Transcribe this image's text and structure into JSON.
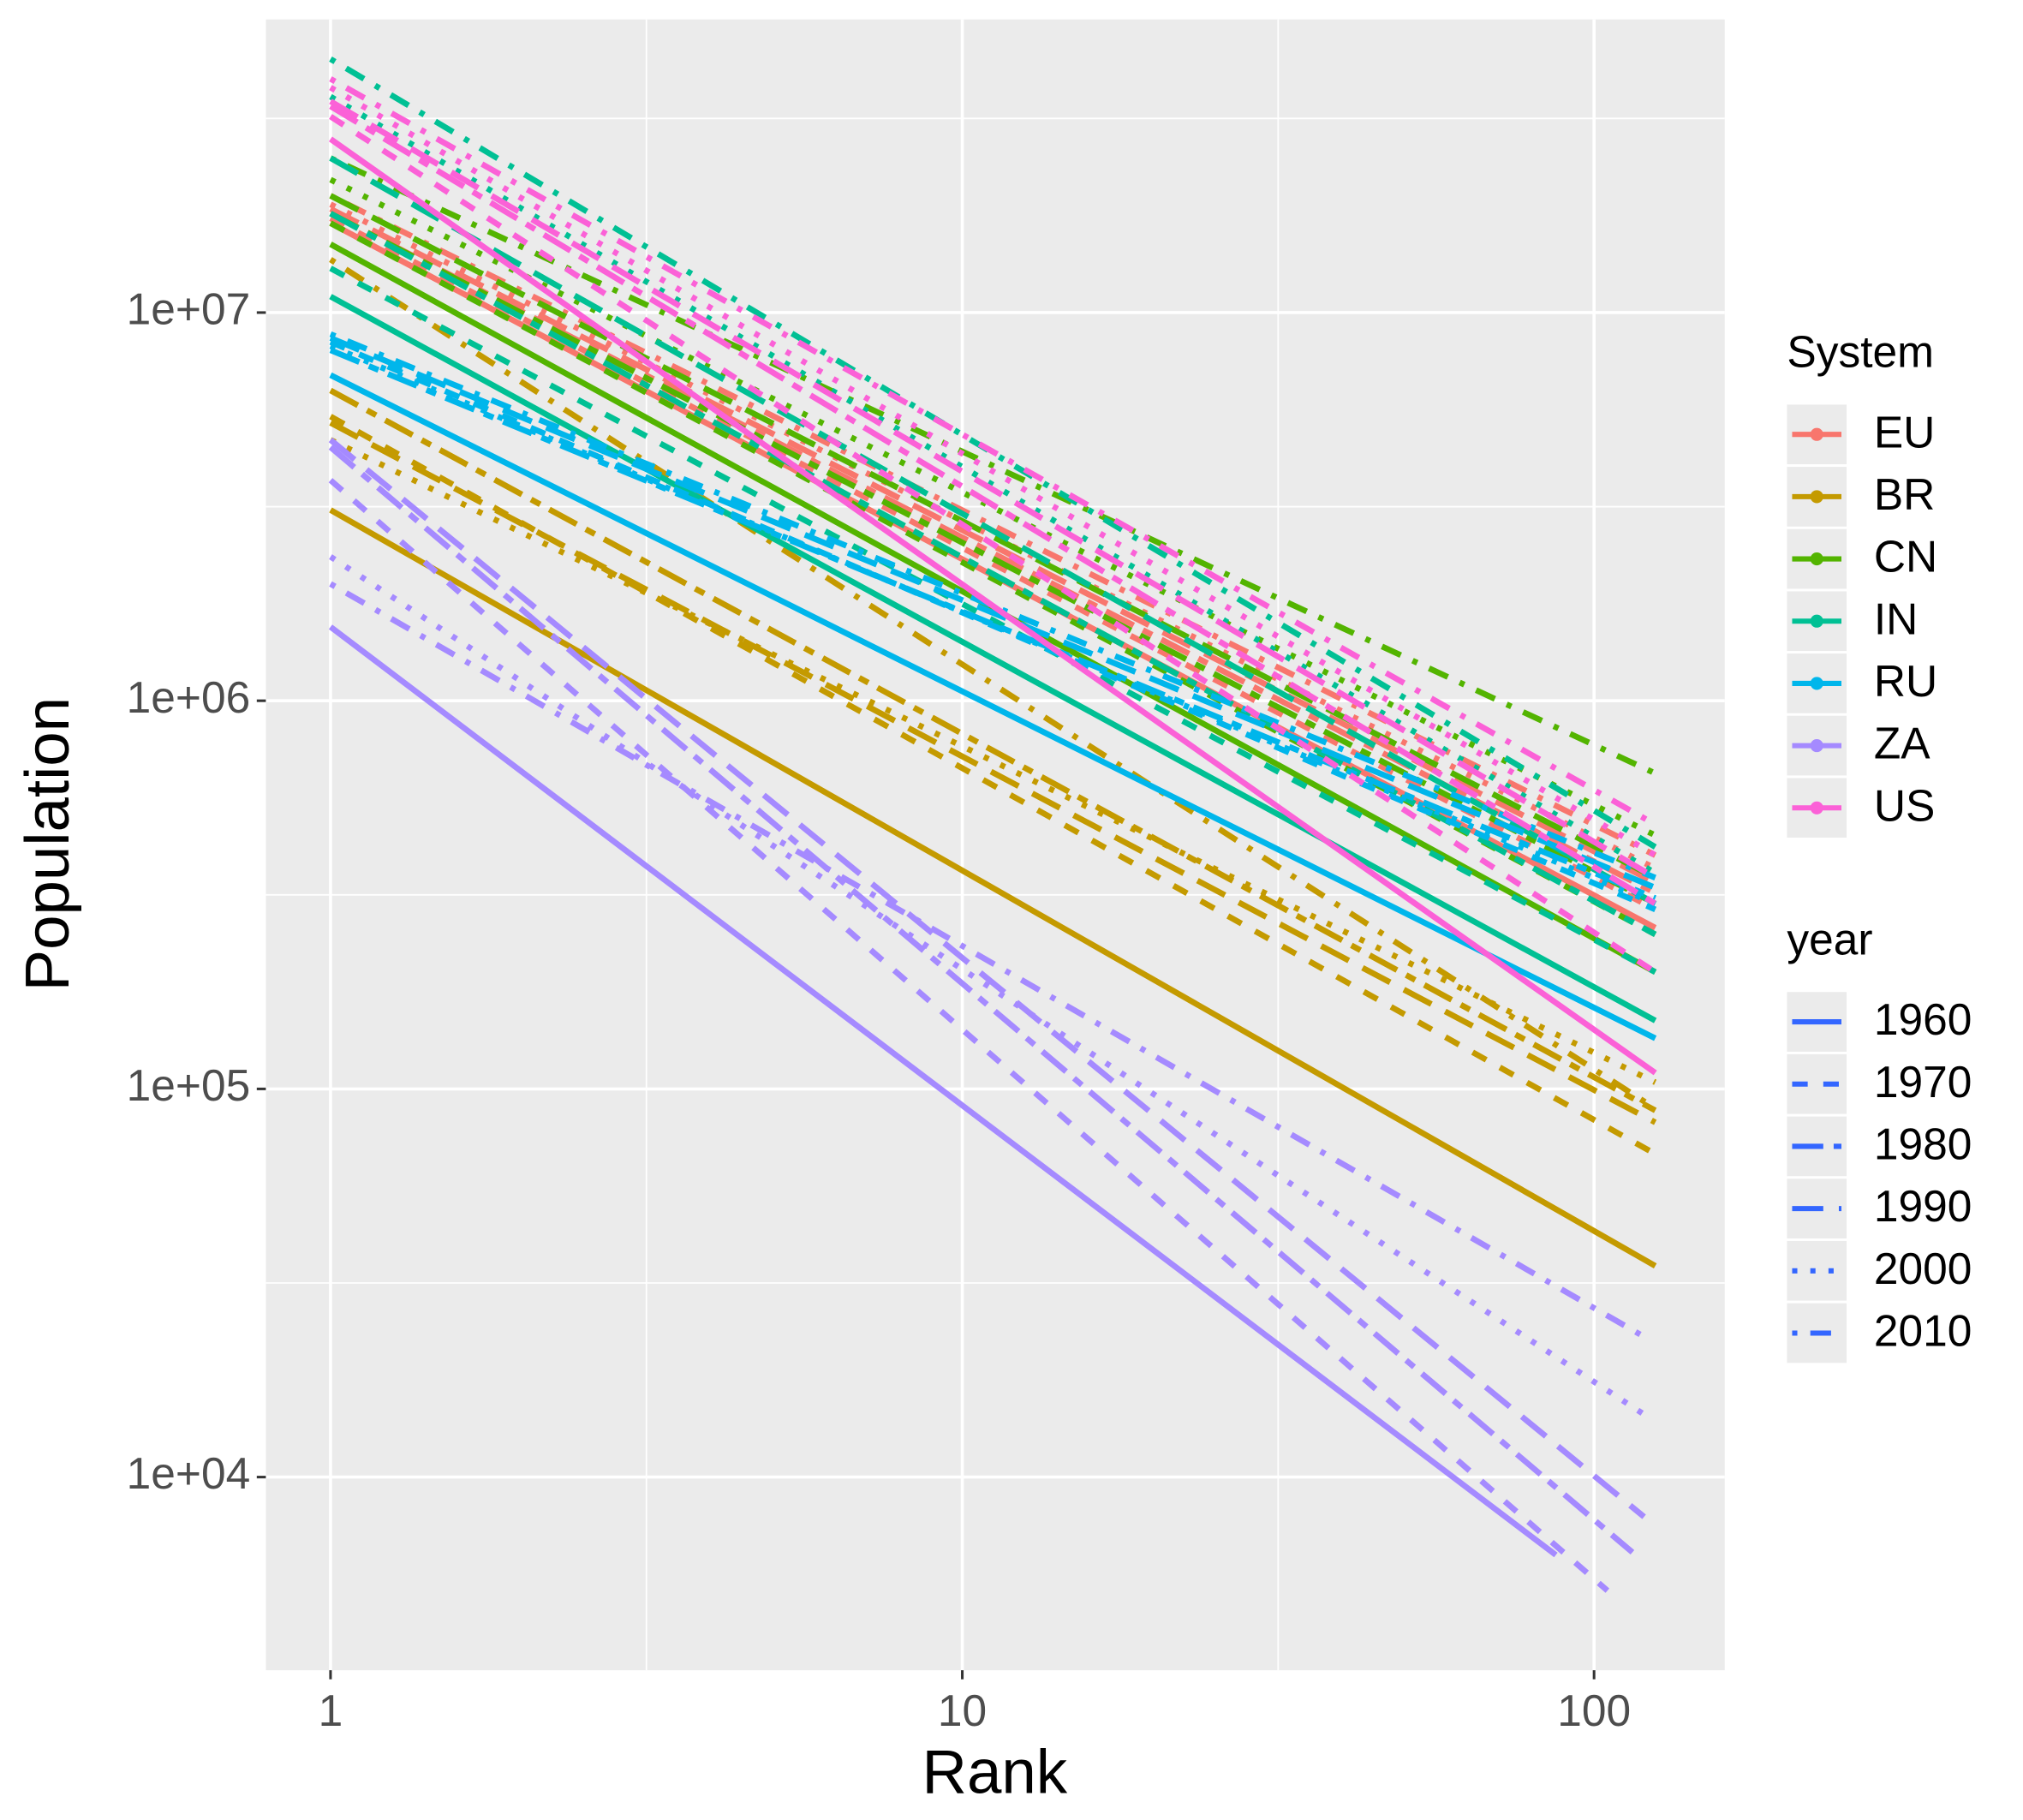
{
  "chart_data": {
    "type": "line",
    "x_label": "Rank",
    "y_label": "Population",
    "log_x": true,
    "log_y": true,
    "grid": true,
    "xlim": [
      0.79,
      161
    ],
    "ylim": [
      3180,
      56900000
    ],
    "xticks": [
      1,
      10,
      100
    ],
    "yticks": [
      {
        "value": 10000,
        "label": "1e+04"
      },
      {
        "value": 100000,
        "label": "1e+05"
      },
      {
        "value": 1000000,
        "label": "1e+06"
      },
      {
        "value": 10000000,
        "label": "1e+07"
      }
    ],
    "system_legend": {
      "title": "System"
    },
    "year_legend": {
      "title": "year",
      "key_color": "#3366FF",
      "years": [
        {
          "name": "1960",
          "linetype": "solid"
        },
        {
          "name": "1970",
          "linetype": "dashed"
        },
        {
          "name": "1980",
          "linetype": "twodash"
        },
        {
          "name": "1990",
          "linetype": "longdash"
        },
        {
          "name": "2000",
          "linetype": "dotted"
        },
        {
          "name": "2010",
          "linetype": "dotdash"
        }
      ]
    },
    "systems": [
      {
        "name": "EU",
        "color": "#F8766D",
        "fits": [
          {
            "x": [
              1,
              125
            ],
            "values": [
              17000000,
              260000
            ]
          },
          {
            "x": [
              1,
              125
            ],
            "values": [
              17500000,
              290000
            ]
          },
          {
            "x": [
              1,
              125
            ],
            "values": [
              18000000,
              320000
            ]
          },
          {
            "x": [
              1,
              125
            ],
            "values": [
              18500000,
              340000
            ]
          },
          {
            "x": [
              1,
              125
            ],
            "values": [
              19000000,
              370000
            ]
          },
          {
            "x": [
              1,
              125
            ],
            "values": [
              20000000,
              400000
            ]
          }
        ]
      },
      {
        "name": "BR",
        "color": "#C49A00",
        "fits": [
          {
            "x": [
              1,
              125
            ],
            "values": [
              3100000,
              35000
            ]
          },
          {
            "x": [
              1,
              125
            ],
            "values": [
              5400000,
              68000
            ]
          },
          {
            "x": [
              1,
              125
            ],
            "values": [
              6300000,
              88000
            ]
          },
          {
            "x": [
              1,
              125
            ],
            "values": [
              5200000,
              82000
            ]
          },
          {
            "x": [
              1,
              125
            ],
            "values": [
              4700000,
              104000
            ]
          },
          {
            "x": [
              1,
              125
            ],
            "values": [
              13700000,
              89000
            ]
          }
        ]
      },
      {
        "name": "CN",
        "color": "#53B400",
        "fits": [
          {
            "x": [
              1,
              125
            ],
            "values": [
              15000000,
              200000
            ]
          },
          {
            "x": [
              1,
              125
            ],
            "values": [
              17000000,
              250000
            ]
          },
          {
            "x": [
              1,
              125
            ],
            "values": [
              18000000,
              300000
            ]
          },
          {
            "x": [
              1,
              125
            ],
            "values": [
              20000000,
              350000
            ]
          },
          {
            "x": [
              1,
              125
            ],
            "values": [
              22000000,
              450000
            ]
          },
          {
            "x": [
              1,
              125
            ],
            "values": [
              25000000,
              650000
            ]
          }
        ]
      },
      {
        "name": "IN",
        "color": "#00C094",
        "fits": [
          {
            "x": [
              1,
              125
            ],
            "values": [
              11000000,
              150000
            ]
          },
          {
            "x": [
              1,
              125
            ],
            "values": [
              13000000,
              200000
            ]
          },
          {
            "x": [
              1,
              125
            ],
            "values": [
              18000000,
              250000
            ]
          },
          {
            "x": [
              1,
              125
            ],
            "values": [
              25000000,
              300000
            ]
          },
          {
            "x": [
              1,
              125
            ],
            "values": [
              36000000,
              360000
            ]
          },
          {
            "x": [
              1,
              125
            ],
            "values": [
              45000000,
              420000
            ]
          }
        ]
      },
      {
        "name": "RU",
        "color": "#00B6EB",
        "fits": [
          {
            "x": [
              1,
              125
            ],
            "values": [
              6900000,
              135000
            ]
          },
          {
            "x": [
              1,
              125
            ],
            "values": [
              8400000,
              290000
            ]
          },
          {
            "x": [
              1,
              125
            ],
            "values": [
              8000000,
              310000
            ]
          },
          {
            "x": [
              1,
              125
            ],
            "values": [
              8600000,
              330000
            ]
          },
          {
            "x": [
              1,
              125
            ],
            "values": [
              8200000,
              300000
            ]
          },
          {
            "x": [
              1,
              125
            ],
            "values": [
              8800000,
              350000
            ]
          }
        ]
      },
      {
        "name": "ZA",
        "color": "#A58AFF",
        "fits": [
          {
            "x": [
              1,
              87
            ],
            "values": [
              1550000,
              6300
            ]
          },
          {
            "x": [
              1,
              105
            ],
            "values": [
              3700000,
              5100
            ]
          },
          {
            "x": [
              1,
              115
            ],
            "values": [
              4500000,
              6400
            ]
          },
          {
            "x": [
              1,
              120
            ],
            "values": [
              4700000,
              7900
            ]
          },
          {
            "x": [
              1,
              120
            ],
            "values": [
              2350000,
              14500
            ]
          },
          {
            "x": [
              1,
              120
            ],
            "values": [
              2000000,
              23000
            ]
          }
        ]
      },
      {
        "name": "US",
        "color": "#FB61D7",
        "fits": [
          {
            "x": [
              1,
              125
            ],
            "values": [
              28000000,
              110000
            ]
          },
          {
            "x": [
              1,
              125
            ],
            "values": [
              32000000,
              200000
            ]
          },
          {
            "x": [
              1,
              125
            ],
            "values": [
              34000000,
              300000
            ]
          },
          {
            "x": [
              1,
              125
            ],
            "values": [
              35000000,
              350000
            ]
          },
          {
            "x": [
              1,
              125
            ],
            "values": [
              38000000,
              400000
            ]
          },
          {
            "x": [
              1,
              125
            ],
            "values": [
              40000000,
              480000
            ]
          }
        ]
      }
    ]
  }
}
